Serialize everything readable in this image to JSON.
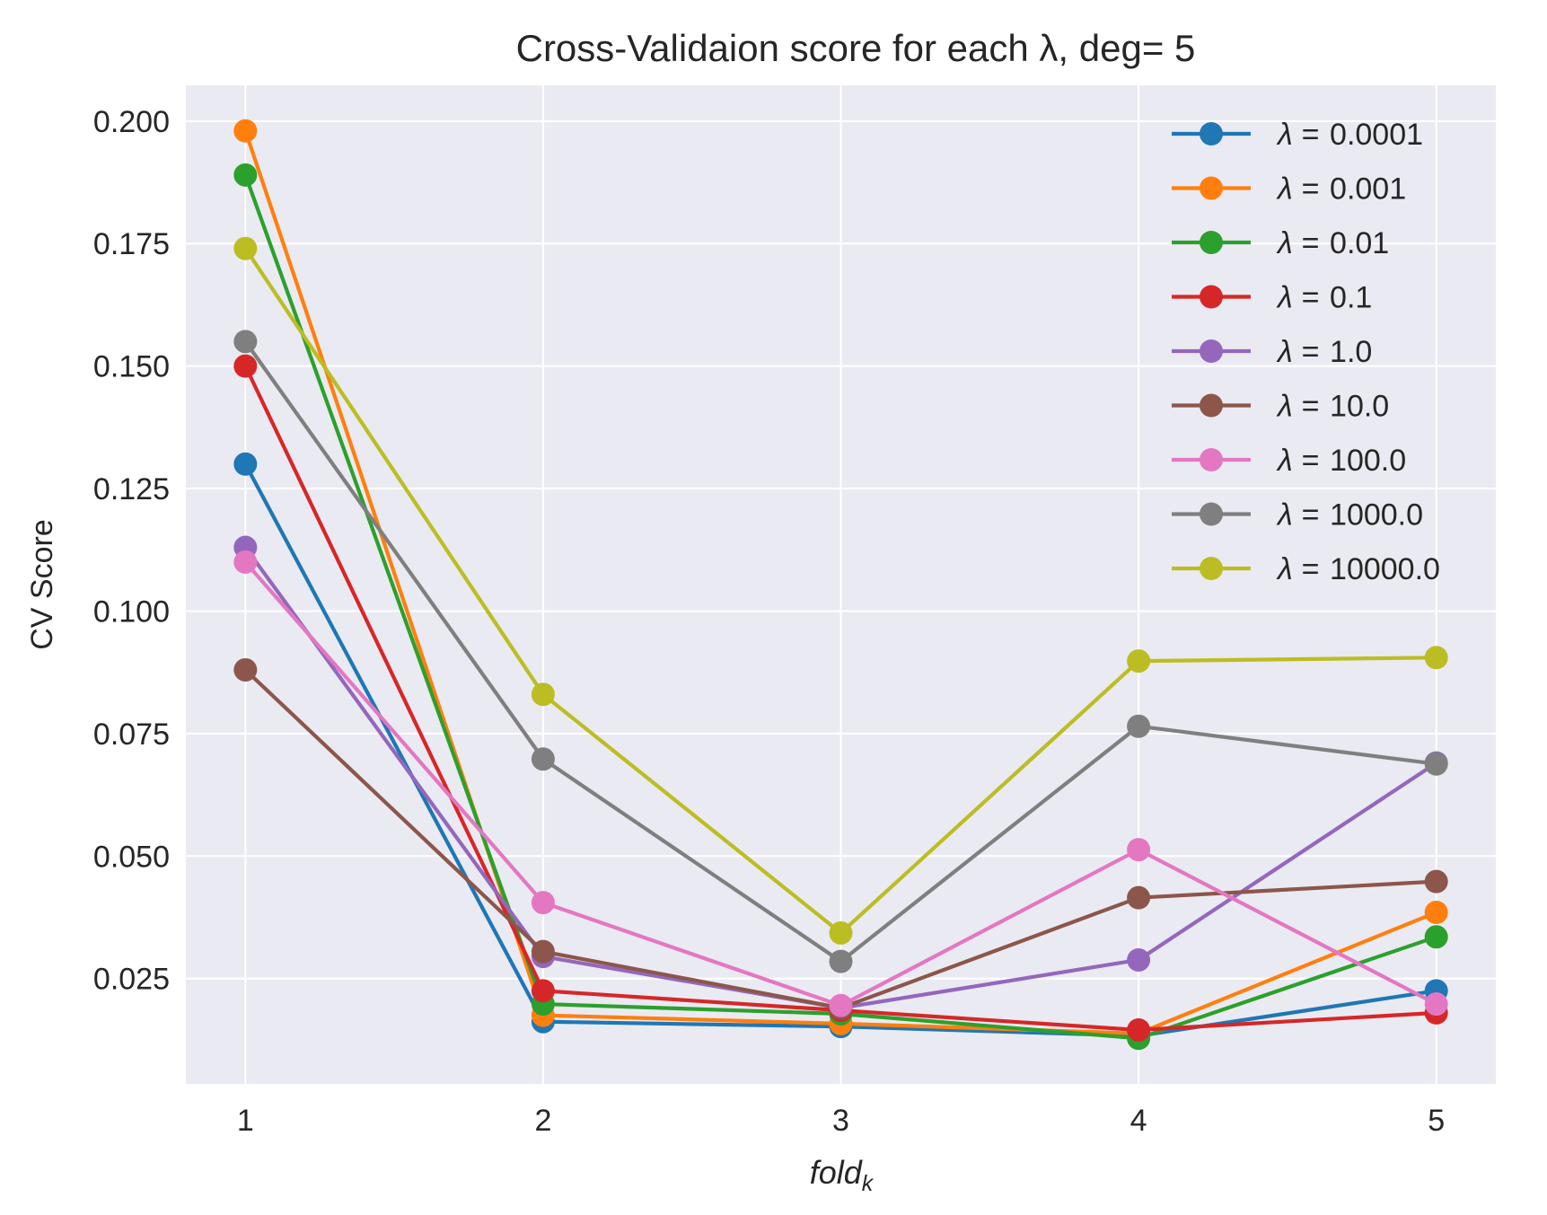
{
  "chart_data": {
    "type": "line",
    "title": "Cross-Validaion score for each λ, deg= 5",
    "xlabel": "fold",
    "xlabel_sub": "k",
    "ylabel": "CV Score",
    "x": [
      1,
      2,
      3,
      4,
      5
    ],
    "x_ticks": [
      "1",
      "2",
      "3",
      "4",
      "5"
    ],
    "y_ticks": [
      "0.025",
      "0.050",
      "0.075",
      "0.100",
      "0.125",
      "0.150",
      "0.175",
      "0.200"
    ],
    "xlim": [
      0.8,
      5.2
    ],
    "ylim": [
      0.0035,
      0.2073
    ],
    "grid": true,
    "background": "#eaeaf2",
    "legend_position": "top-right",
    "legend_prefix": "λ =",
    "series": [
      {
        "name": "0.0001",
        "color": "#1f77b4",
        "values": [
          0.13,
          0.0162,
          0.0152,
          0.0133,
          0.0225
        ]
      },
      {
        "name": "0.001",
        "color": "#ff7f0e",
        "values": [
          0.198,
          0.0175,
          0.0158,
          0.0138,
          0.0385
        ]
      },
      {
        "name": "0.01",
        "color": "#2ca02c",
        "values": [
          0.189,
          0.0198,
          0.0178,
          0.0128,
          0.0335
        ]
      },
      {
        "name": "0.1",
        "color": "#d62728",
        "values": [
          0.15,
          0.0225,
          0.0185,
          0.0145,
          0.018
        ]
      },
      {
        "name": "1.0",
        "color": "#9467bd",
        "values": [
          0.113,
          0.0295,
          0.019,
          0.0288,
          0.069
        ]
      },
      {
        "name": "10.0",
        "color": "#8c564b",
        "values": [
          0.088,
          0.0305,
          0.019,
          0.0415,
          0.0448
        ]
      },
      {
        "name": "100.0",
        "color": "#e377c2",
        "values": [
          0.11,
          0.0405,
          0.0195,
          0.0513,
          0.0198
        ]
      },
      {
        "name": "1000.0",
        "color": "#7f7f7f",
        "values": [
          0.155,
          0.0698,
          0.0285,
          0.0765,
          0.0688
        ]
      },
      {
        "name": "10000.0",
        "color": "#bcbd22",
        "values": [
          0.174,
          0.083,
          0.0343,
          0.0898,
          0.0905
        ]
      }
    ]
  }
}
